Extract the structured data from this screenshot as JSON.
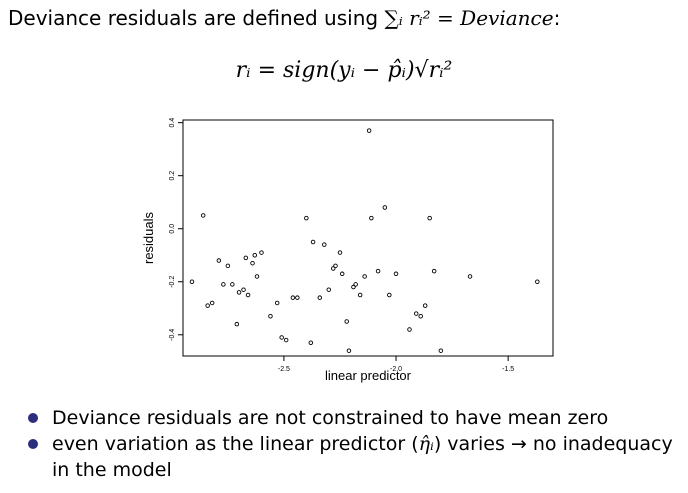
{
  "heading": {
    "before": "Deviance residuals are defined using ",
    "math": "∑ᵢ rᵢ² = Deviance",
    "after": ":"
  },
  "formula": "rᵢ = sign(yᵢ − p̂ᵢ)√rᵢ²",
  "chart_data": {
    "type": "scatter",
    "xlabel": "linear predictor",
    "ylabel": "residuals",
    "xlim": [
      -2.95,
      -1.3
    ],
    "ylim": [
      -0.48,
      0.41
    ],
    "x_ticks": [
      "-2.5",
      "-2.0",
      "-1.5"
    ],
    "x_tick_values": [
      -2.5,
      -2.0,
      -1.5
    ],
    "y_ticks": [
      "-0.4",
      "-0.2",
      "0.0",
      "0.2",
      "0.4"
    ],
    "y_tick_values": [
      -0.4,
      -0.2,
      0.0,
      0.2,
      0.4
    ],
    "grid": false,
    "points": [
      [
        -2.91,
        -0.2
      ],
      [
        -2.86,
        0.05
      ],
      [
        -2.84,
        -0.29
      ],
      [
        -2.82,
        -0.28
      ],
      [
        -2.79,
        -0.12
      ],
      [
        -2.77,
        -0.21
      ],
      [
        -2.75,
        -0.14
      ],
      [
        -2.73,
        -0.21
      ],
      [
        -2.71,
        -0.36
      ],
      [
        -2.7,
        -0.24
      ],
      [
        -2.68,
        -0.23
      ],
      [
        -2.67,
        -0.11
      ],
      [
        -2.66,
        -0.25
      ],
      [
        -2.64,
        -0.13
      ],
      [
        -2.63,
        -0.1
      ],
      [
        -2.62,
        -0.18
      ],
      [
        -2.6,
        -0.09
      ],
      [
        -2.56,
        -0.33
      ],
      [
        -2.53,
        -0.28
      ],
      [
        -2.51,
        -0.41
      ],
      [
        -2.49,
        -0.42
      ],
      [
        -2.46,
        -0.26
      ],
      [
        -2.44,
        -0.26
      ],
      [
        -2.4,
        0.04
      ],
      [
        -2.38,
        -0.43
      ],
      [
        -2.37,
        -0.05
      ],
      [
        -2.34,
        -0.26
      ],
      [
        -2.32,
        -0.06
      ],
      [
        -2.3,
        -0.23
      ],
      [
        -2.28,
        -0.15
      ],
      [
        -2.27,
        -0.14
      ],
      [
        -2.25,
        -0.09
      ],
      [
        -2.24,
        -0.17
      ],
      [
        -2.22,
        -0.35
      ],
      [
        -2.21,
        -0.46
      ],
      [
        -2.19,
        -0.22
      ],
      [
        -2.18,
        -0.21
      ],
      [
        -2.16,
        -0.25
      ],
      [
        -2.14,
        -0.18
      ],
      [
        -2.12,
        0.37
      ],
      [
        -2.11,
        0.04
      ],
      [
        -2.08,
        -0.16
      ],
      [
        -2.05,
        0.08
      ],
      [
        -2.03,
        -0.25
      ],
      [
        -2.0,
        -0.17
      ],
      [
        -1.94,
        -0.38
      ],
      [
        -1.91,
        -0.32
      ],
      [
        -1.89,
        -0.33
      ],
      [
        -1.87,
        -0.29
      ],
      [
        -1.85,
        0.04
      ],
      [
        -1.83,
        -0.16
      ],
      [
        -1.8,
        -0.46
      ],
      [
        -1.67,
        -0.18
      ],
      [
        -1.37,
        -0.2
      ]
    ]
  },
  "bullets": [
    {
      "text": "Deviance residuals are not constrained to have mean zero"
    },
    {
      "before": "even variation as the linear predictor (",
      "math": "η̂ᵢ",
      "after": ") varies → no inadequacy in the model"
    }
  ],
  "colors": {
    "bullet": "#2d2d7e"
  }
}
